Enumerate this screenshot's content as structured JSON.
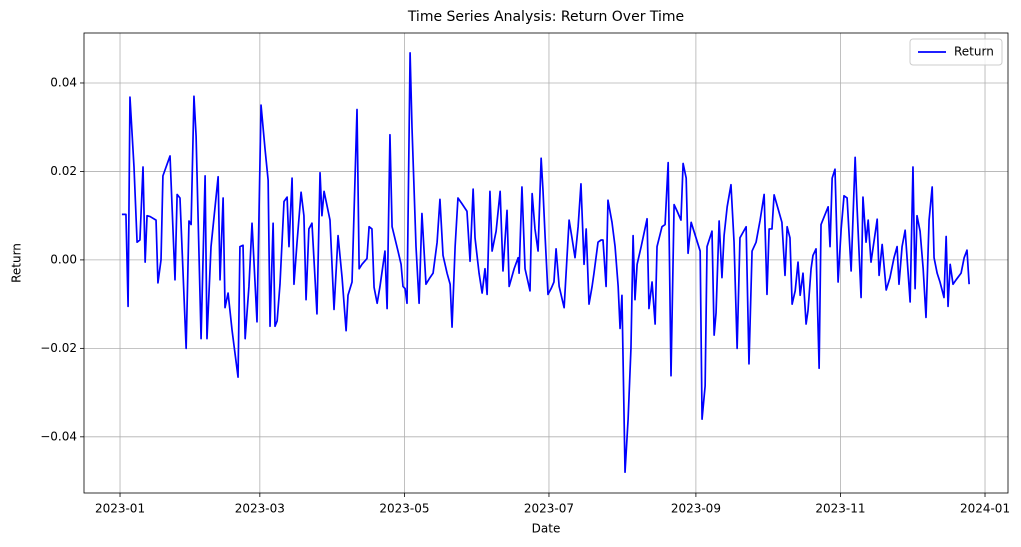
{
  "chart_data": {
    "type": "line",
    "title": "Time Series Analysis: Return Over Time",
    "xlabel": "Date",
    "ylabel": "Return",
    "x": [
      0.8,
      2.5,
      3.4,
      4.2,
      5.9,
      7.2,
      8.4,
      9.7,
      10.6,
      11.4,
      12.7,
      15.2,
      16.0,
      17.3,
      18.1,
      21.1,
      23.2,
      24.1,
      25.3,
      27.9,
      29.1,
      30.0,
      31.2,
      32.1,
      34.2,
      35.9,
      36.7,
      38.4,
      41.4,
      42.2,
      43.5,
      44.3,
      45.6,
      47.3,
      49.8,
      50.6,
      51.9,
      52.8,
      54.4,
      55.7,
      57.8,
      59.5,
      61.2,
      62.5,
      63.3,
      64.6,
      65.4,
      66.3,
      67.5,
      69.2,
      70.5,
      71.3,
      72.6,
      73.4,
      74.7,
      76.4,
      77.6,
      78.5,
      79.7,
      81.0,
      83.1,
      84.4,
      85.2,
      86.1,
      88.6,
      90.3,
      92.0,
      93.7,
      95.4,
      96.2,
      97.9,
      100.0,
      100.9,
      102.1,
      104.2,
      105.1,
      106.3,
      107.2,
      108.5,
      109.7,
      111.8,
      112.7,
      113.9,
      114.8,
      117.3,
      118.6,
      119.4,
      120.3,
      121.1,
      122.4,
      123.2,
      124.9,
      126.2,
      127.4,
      129.1,
      130.8,
      132.1,
      133.8,
      135.0,
      136.3,
      138.0,
      139.3,
      140.1,
      141.4,
      142.6,
      144.3,
      146.4,
      147.7,
      149.0,
      149.8,
      151.5,
      152.8,
      154.0,
      154.9,
      156.1,
      157.0,
      158.7,
      160.4,
      161.6,
      163.3,
      164.2,
      166.3,
      168.0,
      168.4,
      169.6,
      170.9,
      173.0,
      173.9,
      175.1,
      176.4,
      177.7,
      178.5,
      179.4,
      180.6,
      181.9,
      183.1,
      184.0,
      185.3,
      187.4,
      189.5,
      190.7,
      192.0,
      193.3,
      194.5,
      195.8,
      196.7,
      197.9,
      199.2,
      200.0,
      201.7,
      203.0,
      203.8,
      205.1,
      205.9,
      207.6,
      208.9,
      210.2,
      211.0,
      211.8,
      213.1,
      214.4,
      215.6,
      216.5,
      217.3,
      218.2,
      219.9,
      222.4,
      223.2,
      224.5,
      225.8,
      226.6,
      228.7,
      230.0,
      231.3,
      232.5,
      233.8,
      235.1,
      236.7,
      237.6,
      238.9,
      239.7,
      241.0,
      244.8,
      245.6,
      246.9,
      247.7,
      249.8,
      250.7,
      251.5,
      252.8,
      254.0,
      254.9,
      256.2,
      257.8,
      259.1,
      260.4,
      261.6,
      264.2,
      265.4,
      266.7,
      268.4,
      270.1,
      271.8,
      273.0,
      273.9,
      275.1,
      276.0,
      277.7,
      279.3,
      280.6,
      281.5,
      282.7,
      283.6,
      284.9,
      286.1,
      287.0,
      288.2,
      289.5,
      290.3,
      291.6,
      292.4,
      293.7,
      295.0,
      295.8,
      298.8,
      299.6,
      300.5,
      301.7,
      303.0,
      304.3,
      305.5,
      306.8,
      308.5,
      310.2,
      311.0,
      312.7,
      313.5,
      314.8,
      315.7,
      316.9,
      319.5,
      320.3,
      321.6,
      323.3,
      324.9,
      326.6,
      327.9,
      328.7,
      330.0,
      331.3,
      333.4,
      334.6,
      335.5,
      336.3,
      337.6,
      338.9,
      340.1,
      341.4,
      342.7,
      343.5,
      344.8,
      346.0,
      347.7,
      348.6,
      349.4,
      350.3,
      351.5,
      352.8,
      354.9,
      356.2,
      357.4,
      358.3
    ],
    "series": [
      {
        "name": "Return",
        "color": "#0000ff",
        "values": [
          0.0103,
          0.0103,
          -0.0105,
          0.0368,
          0.021,
          0.004,
          0.0045,
          0.021,
          -0.0005,
          0.01,
          0.0098,
          0.009,
          -0.0052,
          0.0,
          0.019,
          0.0235,
          -0.0045,
          0.0148,
          0.014,
          -0.02,
          0.0088,
          0.008,
          0.037,
          0.028,
          -0.0178,
          0.019,
          -0.0178,
          0.003,
          0.0188,
          -0.0045,
          0.014,
          -0.0108,
          -0.0075,
          -0.016,
          -0.0265,
          0.003,
          0.0033,
          -0.0178,
          -0.006,
          0.0083,
          -0.014,
          0.035,
          0.025,
          0.018,
          -0.015,
          0.0083,
          -0.015,
          -0.0138,
          -0.0055,
          0.0132,
          0.0142,
          0.003,
          0.0185,
          -0.0055,
          0.004,
          0.0153,
          0.01,
          -0.009,
          0.007,
          0.0083,
          -0.0122,
          0.0197,
          0.01,
          0.0155,
          0.009,
          -0.0112,
          0.0055,
          -0.004,
          -0.016,
          -0.008,
          -0.005,
          0.034,
          -0.002,
          -0.001,
          0.0003,
          0.0075,
          0.007,
          -0.0062,
          -0.0098,
          -0.006,
          0.002,
          -0.011,
          0.0283,
          0.0075,
          0.002,
          -0.001,
          -0.006,
          -0.0065,
          -0.0098,
          0.0468,
          0.03,
          0.003,
          -0.0098,
          0.0105,
          -0.0055,
          -0.004,
          -0.003,
          0.004,
          0.0137,
          0.001,
          -0.003,
          -0.0055,
          -0.0152,
          0.003,
          0.014,
          0.0127,
          0.011,
          -0.0003,
          0.016,
          0.005,
          -0.003,
          -0.0075,
          -0.002,
          -0.0078,
          0.0155,
          0.002,
          0.0065,
          0.0155,
          -0.0025,
          0.0112,
          -0.006,
          -0.002,
          0.0005,
          -0.003,
          0.0165,
          -0.002,
          -0.007,
          0.015,
          0.007,
          0.002,
          0.023,
          0.0155,
          0.005,
          -0.0078,
          -0.0065,
          -0.005,
          0.0025,
          -0.006,
          -0.0108,
          0.009,
          0.005,
          0.0005,
          0.0075,
          0.0172,
          -0.001,
          0.007,
          -0.01,
          -0.006,
          -0.003,
          0.004,
          0.0045,
          0.0045,
          -0.006,
          0.0135,
          0.0085,
          0.003,
          -0.006,
          -0.0155,
          -0.008,
          -0.048,
          -0.036,
          -0.02,
          0.0055,
          -0.009,
          -0.001,
          0.003,
          0.0093,
          -0.011,
          -0.005,
          -0.0145,
          0.003,
          0.0075,
          0.008,
          0.022,
          -0.0262,
          0.0125,
          0.011,
          0.009,
          0.0218,
          0.0185,
          0.0015,
          0.0085,
          0.002,
          -0.036,
          -0.0285,
          0.003,
          0.0065,
          -0.017,
          -0.012,
          0.0088,
          -0.004,
          0.0055,
          0.012,
          0.017,
          0.004,
          -0.02,
          0.005,
          0.0075,
          -0.0235,
          0.002,
          0.004,
          0.009,
          0.0148,
          -0.0078,
          0.007,
          0.007,
          0.0147,
          0.0115,
          0.0085,
          -0.0035,
          0.0075,
          0.005,
          -0.01,
          -0.007,
          -0.0005,
          -0.008,
          -0.003,
          -0.0145,
          -0.0115,
          -0.002,
          0.001,
          0.0025,
          -0.0245,
          0.008,
          0.012,
          0.003,
          0.0185,
          0.0205,
          -0.005,
          0.007,
          0.0145,
          0.014,
          -0.0025,
          0.0232,
          0.012,
          -0.0085,
          0.0142,
          0.004,
          0.009,
          -0.0005,
          0.0092,
          -0.0035,
          0.0035,
          -0.0068,
          -0.004,
          0.0005,
          0.003,
          -0.0055,
          0.003,
          0.0067,
          -0.0095,
          0.021,
          -0.0065,
          0.01,
          0.0065,
          -0.002,
          -0.013,
          0.009,
          0.0165,
          0.0005,
          -0.003,
          -0.005,
          -0.0085,
          0.0053,
          -0.0105,
          -0.001,
          -0.0055,
          -0.0045,
          -0.003,
          0.0005,
          0.0022,
          -0.0055
        ]
      }
    ],
    "xlim": [
      -15.2,
      374.7
    ],
    "xticks": [
      {
        "value": 0,
        "label": "2023-01"
      },
      {
        "value": 59,
        "label": "2023-03"
      },
      {
        "value": 120,
        "label": "2023-05"
      },
      {
        "value": 181,
        "label": "2023-07"
      },
      {
        "value": 243,
        "label": "2023-09"
      },
      {
        "value": 304,
        "label": "2023-11"
      },
      {
        "value": 365,
        "label": "2024-01"
      }
    ],
    "ylim": [
      -0.0527,
      0.0513
    ],
    "yticks": [
      {
        "value": -0.04,
        "label": "−0.04"
      },
      {
        "value": -0.02,
        "label": "−0.02"
      },
      {
        "value": 0,
        "label": "0.00"
      },
      0.02,
      0.04
    ],
    "grid": true,
    "legend": "upper right"
  }
}
